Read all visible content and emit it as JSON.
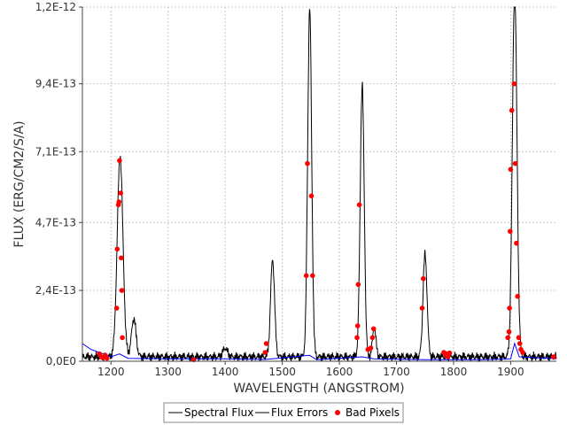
{
  "chart_data": {
    "type": "line",
    "xlabel": "WAVELENGTH (ANGSTROM)",
    "ylabel": "FLUX (ERG/CM2/S/A)",
    "xlim": [
      1150,
      1980
    ],
    "ylim": [
      0,
      1.2e-12
    ],
    "x_ticks": [
      1200,
      1300,
      1400,
      1500,
      1600,
      1700,
      1800,
      1900
    ],
    "x_tick_labels": [
      "1200",
      "1300",
      "1400",
      "1500",
      "1600",
      "1700",
      "1800",
      "1900"
    ],
    "y_ticks": [
      0,
      2.4e-13,
      4.7e-13,
      7.1e-13,
      9.4e-13,
      1.2e-12
    ],
    "y_tick_labels": [
      "0,0E0",
      "2,4E-13",
      "4,7E-13",
      "7,1E-13",
      "9,4E-13",
      "1,2E-12"
    ],
    "grid": true,
    "legend_position": "bottom-center",
    "series": [
      {
        "name": "Spectral Flux",
        "color": "#000000",
        "peaks": [
          {
            "center": 1216,
            "height": 6.8e-13,
            "width": 5
          },
          {
            "center": 1240,
            "height": 1.3e-13,
            "width": 4
          },
          {
            "center": 1400,
            "height": 3e-14,
            "width": 4
          },
          {
            "center": 1483,
            "height": 3.3e-13,
            "width": 3.5
          },
          {
            "center": 1548,
            "height": 1.18e-12,
            "width": 3.5
          },
          {
            "center": 1640,
            "height": 9.2e-13,
            "width": 3.5
          },
          {
            "center": 1661,
            "height": 1e-13,
            "width": 3
          },
          {
            "center": 1750,
            "height": 3.5e-13,
            "width": 3.5
          },
          {
            "center": 1907,
            "height": 1.25e-12,
            "width": 4
          }
        ],
        "baseline": 1.5e-14
      },
      {
        "name": "Flux Errors",
        "color": "#0000ff",
        "points": [
          [
            1150,
            6e-14
          ],
          [
            1165,
            4e-14
          ],
          [
            1180,
            3e-14
          ],
          [
            1200,
            1.5e-14
          ],
          [
            1215,
            2.5e-14
          ],
          [
            1230,
            1e-14
          ],
          [
            1300,
            8e-15
          ],
          [
            1400,
            8e-15
          ],
          [
            1470,
            6e-15
          ],
          [
            1548,
            2e-14
          ],
          [
            1560,
            5e-15
          ],
          [
            1640,
            1.5e-14
          ],
          [
            1660,
            8e-15
          ],
          [
            1750,
            5e-15
          ],
          [
            1850,
            5e-15
          ],
          [
            1900,
            8e-15
          ],
          [
            1907,
            6e-14
          ],
          [
            1915,
            1.5e-14
          ],
          [
            1980,
            8e-15
          ]
        ]
      },
      {
        "name": "Bad Pixels",
        "color": "#ff0000",
        "points": [
          [
            1180,
            2.5e-14
          ],
          [
            1183,
            1.5e-14
          ],
          [
            1186,
            1.2e-14
          ],
          [
            1190,
            2e-14
          ],
          [
            1193,
            1e-14
          ],
          [
            1210,
            1.8e-13
          ],
          [
            1211,
            3.8e-13
          ],
          [
            1213,
            5.3e-13
          ],
          [
            1214,
            5.4e-13
          ],
          [
            1215,
            6.8e-13
          ],
          [
            1217,
            5.7e-13
          ],
          [
            1218,
            3.5e-13
          ],
          [
            1219,
            2.4e-13
          ],
          [
            1220,
            8e-14
          ],
          [
            1345,
            5e-15
          ],
          [
            1470,
            3e-14
          ],
          [
            1472,
            6e-14
          ],
          [
            1542,
            2.9e-13
          ],
          [
            1544,
            6.7e-13
          ],
          [
            1551,
            5.6e-13
          ],
          [
            1553,
            2.9e-13
          ],
          [
            1631,
            8e-14
          ],
          [
            1632,
            1.2e-13
          ],
          [
            1633,
            2.6e-13
          ],
          [
            1635,
            5.3e-13
          ],
          [
            1650,
            4e-14
          ],
          [
            1655,
            4.5e-14
          ],
          [
            1658,
            8e-14
          ],
          [
            1660,
            1.1e-13
          ],
          [
            1745,
            1.8e-13
          ],
          [
            1747,
            2.8e-13
          ],
          [
            1783,
            3e-14
          ],
          [
            1786,
            2e-14
          ],
          [
            1788,
            2.5e-14
          ],
          [
            1790,
            1.5e-14
          ],
          [
            1793,
            2.8e-14
          ],
          [
            1895,
            8e-14
          ],
          [
            1897,
            1e-13
          ],
          [
            1898,
            1.8e-13
          ],
          [
            1899,
            4.4e-13
          ],
          [
            1900,
            6.5e-13
          ],
          [
            1902,
            8.5e-13
          ],
          [
            1906,
            9.4e-13
          ],
          [
            1908,
            6.7e-13
          ],
          [
            1910,
            4e-13
          ],
          [
            1912,
            2.2e-13
          ],
          [
            1914,
            8e-14
          ],
          [
            1916,
            6e-14
          ],
          [
            1918,
            4e-14
          ],
          [
            1921,
            3e-14
          ],
          [
            1975,
            1.5e-14
          ]
        ]
      }
    ]
  }
}
